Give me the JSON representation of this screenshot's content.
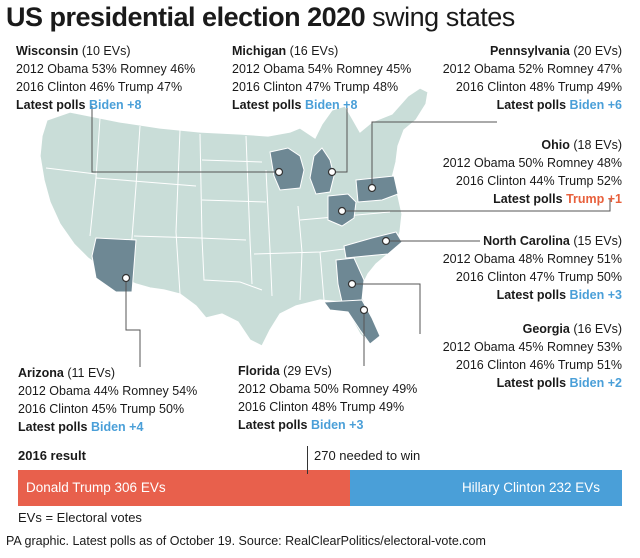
{
  "title_bold": "US presidential election 2020",
  "title_light": "swing states",
  "colors": {
    "land": "#c9ddd8",
    "swing": "#6e8894",
    "border": "#ffffff",
    "biden": "#4a9fd8",
    "trump": "#e8604c"
  },
  "states": [
    {
      "name": "Wisconsin",
      "evs": "(10 EVs)",
      "l2012": "2012 Obama 53% Romney 46%",
      "l2016": "2016 Clinton 46% Trump 47%",
      "latest_label": "Latest polls",
      "lead": "Biden +8",
      "lead_party": "biden"
    },
    {
      "name": "Michigan",
      "evs": "(16 EVs)",
      "l2012": "2012 Obama 54% Romney 45%",
      "l2016": "2016 Clinton 47% Trump 48%",
      "latest_label": "Latest polls",
      "lead": "Biden +8",
      "lead_party": "biden"
    },
    {
      "name": "Pennsylvania",
      "evs": "(20 EVs)",
      "l2012": "2012 Obama 52% Romney 47%",
      "l2016": "2016 Clinton 48% Trump 49%",
      "latest_label": "Latest polls",
      "lead": "Biden +6",
      "lead_party": "biden"
    },
    {
      "name": "Ohio",
      "evs": "(18 EVs)",
      "l2012": "2012 Obama 50% Romney 48%",
      "l2016": "2016 Clinton 44% Trump 52%",
      "latest_label": "Latest polls",
      "lead": "Trump +1",
      "lead_party": "trump"
    },
    {
      "name": "North Carolina",
      "evs": "(15 EVs)",
      "l2012": "2012 Obama 48% Romney 51%",
      "l2016": "2016 Clinton 47% Trump 50%",
      "latest_label": "Latest polls",
      "lead": "Biden +3",
      "lead_party": "biden"
    },
    {
      "name": "Georgia",
      "evs": "(16 EVs)",
      "l2012": "2012 Obama 45% Romney 53%",
      "l2016": "2016 Clinton 46% Trump 51%",
      "latest_label": "Latest polls",
      "lead": "Biden +2",
      "lead_party": "biden"
    },
    {
      "name": "Florida",
      "evs": "(29 EVs)",
      "l2012": "2012 Obama 50% Romney 49%",
      "l2016": "2016 Clinton 48% Trump 49%",
      "latest_label": "Latest polls",
      "lead": "Biden +3",
      "lead_party": "biden"
    },
    {
      "name": "Arizona",
      "evs": "(11 EVs)",
      "l2012": "2012 Obama 44% Romney 54%",
      "l2016": "2016 Clinton 45% Trump 50%",
      "latest_label": "Latest polls",
      "lead": "Biden +4",
      "lead_party": "biden"
    }
  ],
  "result": {
    "title": "2016 result",
    "needed": "270 needed to win",
    "trump_label": "Donald Trump 306 EVs",
    "clinton_label": "Hillary Clinton 232 EVs",
    "trump_evs": 306,
    "clinton_evs": 232
  },
  "ev_note": "EVs = Electoral votes",
  "source": "PA graphic. Latest polls as of October 19. Source: RealClearPolitics/electoral-vote.com"
}
